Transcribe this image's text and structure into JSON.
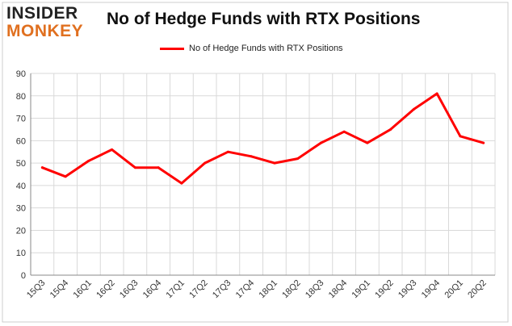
{
  "logo": {
    "line1": "INSIDER",
    "line2": "MONKEY"
  },
  "chart_data": {
    "type": "line",
    "title": "No of Hedge Funds with RTX Positions",
    "xlabel": "",
    "ylabel": "",
    "legend": "top-center",
    "grid": true,
    "ylim": [
      0,
      90
    ],
    "yticks": [
      0,
      10,
      20,
      30,
      40,
      50,
      60,
      70,
      80,
      90
    ],
    "categories": [
      "15Q3",
      "15Q4",
      "16Q1",
      "16Q2",
      "16Q3",
      "16Q4",
      "17Q1",
      "17Q2",
      "17Q3",
      "17Q4",
      "18Q1",
      "18Q2",
      "18Q3",
      "18Q4",
      "19Q1",
      "19Q2",
      "19Q3",
      "19Q4",
      "20Q1",
      "20Q2"
    ],
    "series": [
      {
        "name": "No of Hedge Funds with RTX Positions",
        "color": "#ff0000",
        "values": [
          48,
          44,
          51,
          56,
          48,
          48,
          41,
          50,
          55,
          53,
          50,
          52,
          59,
          64,
          59,
          65,
          74,
          81,
          62,
          59
        ]
      }
    ]
  }
}
